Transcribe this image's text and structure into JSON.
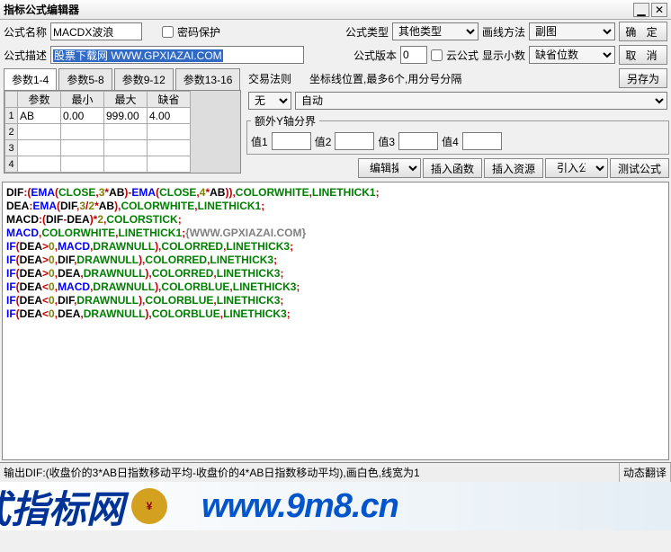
{
  "title": "指标公式编辑器",
  "labels": {
    "name": "公式名称",
    "pwd": "密码保护",
    "type": "公式类型",
    "drawmethod": "画线方法",
    "desc": "公式描述",
    "ver": "公式版本",
    "cloud": "云公式",
    "decimal": "显示小数",
    "ok": "确 定",
    "cancel": "取 消",
    "saveas": "另存为",
    "tradeRule": "交易法则",
    "coordHint": "坐标线位置,最多6个,用分号分隔",
    "extraY": "额外Y轴分界",
    "v1": "值1",
    "v2": "值2",
    "v3": "值3",
    "v4": "值4",
    "editOp": "编辑操作",
    "insFunc": "插入函数",
    "insRes": "插入资源",
    "refFormula": "引入公式",
    "testFormula": "测试公式",
    "dynTrans": "动态翻译"
  },
  "fields": {
    "name": "MACDX波浪",
    "descHL": "股票下载网 WWW.GPXIAZAI.COM",
    "typeSel": "其他类型",
    "drawSel": "副图",
    "ver": "0",
    "decimalSel": "缺省位数",
    "ruleSel": "无",
    "coordSel": "自动"
  },
  "tabs": [
    "参数1-4",
    "参数5-8",
    "参数9-12",
    "参数13-16"
  ],
  "paramHeaders": [
    "参数",
    "最小",
    "最大",
    "缺省"
  ],
  "paramRows": [
    [
      "AB",
      "0.00",
      "999.00",
      "4.00"
    ],
    [
      "",
      "",
      "",
      ""
    ],
    [
      "",
      "",
      "",
      ""
    ],
    [
      "",
      "",
      "",
      ""
    ]
  ],
  "status": "输出DIF:(收盘价的3*AB日指数移动平均-收盘价的4*AB日指数移动平均),画白色,线宽为1",
  "watermark": {
    "cn": "式指标网",
    "url": "www.9m8.cn"
  },
  "code": [
    [
      [
        "black",
        "DIF"
      ],
      [
        "red",
        ":("
      ],
      [
        "blue",
        "EMA"
      ],
      [
        "red",
        "("
      ],
      [
        "green",
        "CLOSE"
      ],
      [
        "red",
        ","
      ],
      [
        "brown",
        "3"
      ],
      [
        "red",
        "*"
      ],
      [
        "black",
        "AB"
      ],
      [
        "red",
        ")-"
      ],
      [
        "blue",
        "EMA"
      ],
      [
        "red",
        "("
      ],
      [
        "green",
        "CLOSE"
      ],
      [
        "red",
        ","
      ],
      [
        "brown",
        "4"
      ],
      [
        "red",
        "*"
      ],
      [
        "black",
        "AB"
      ],
      [
        "red",
        ")),"
      ],
      [
        "green",
        "COLORWHITE"
      ],
      [
        "red",
        ","
      ],
      [
        "green",
        "LINETHICK1"
      ],
      [
        "red",
        ";"
      ]
    ],
    [
      [
        "black",
        "DEA"
      ],
      [
        "red",
        ":"
      ],
      [
        "blue",
        "EMA"
      ],
      [
        "red",
        "("
      ],
      [
        "black",
        "DIF"
      ],
      [
        "red",
        ","
      ],
      [
        "brown",
        "3"
      ],
      [
        "red",
        "/"
      ],
      [
        "brown",
        "2"
      ],
      [
        "red",
        "*"
      ],
      [
        "black",
        "AB"
      ],
      [
        "red",
        "),"
      ],
      [
        "green",
        "COLORWHITE"
      ],
      [
        "red",
        ","
      ],
      [
        "green",
        "LINETHICK1"
      ],
      [
        "red",
        ";"
      ]
    ],
    [
      [
        "black",
        "MACD"
      ],
      [
        "red",
        ":("
      ],
      [
        "black",
        "DIF"
      ],
      [
        "red",
        "-"
      ],
      [
        "black",
        "DEA"
      ],
      [
        "red",
        ")*"
      ],
      [
        "brown",
        "2"
      ],
      [
        "red",
        ","
      ],
      [
        "green",
        "COLORSTICK"
      ],
      [
        "red",
        ";"
      ]
    ],
    [
      [
        "blue",
        "MACD"
      ],
      [
        "red",
        ","
      ],
      [
        "green",
        "COLORWHITE"
      ],
      [
        "red",
        ","
      ],
      [
        "green",
        "LINETHICK1"
      ],
      [
        "red",
        ";"
      ],
      [
        "gray",
        "{WWW.GPXIAZAI.COM}"
      ]
    ],
    [
      [
        "blue",
        "IF"
      ],
      [
        "red",
        "("
      ],
      [
        "black",
        "DEA"
      ],
      [
        "red",
        ">"
      ],
      [
        "brown",
        "0"
      ],
      [
        "red",
        ","
      ],
      [
        "blue",
        "MACD"
      ],
      [
        "red",
        ","
      ],
      [
        "green",
        "DRAWNULL"
      ],
      [
        "red",
        "),"
      ],
      [
        "green",
        "COLORRED"
      ],
      [
        "red",
        ","
      ],
      [
        "green",
        "LINETHICK3"
      ],
      [
        "red",
        ";"
      ]
    ],
    [
      [
        "blue",
        "IF"
      ],
      [
        "red",
        "("
      ],
      [
        "black",
        "DEA"
      ],
      [
        "red",
        ">"
      ],
      [
        "brown",
        "0"
      ],
      [
        "red",
        ","
      ],
      [
        "black",
        "DIF"
      ],
      [
        "red",
        ","
      ],
      [
        "green",
        "DRAWNULL"
      ],
      [
        "red",
        "),"
      ],
      [
        "green",
        "COLORRED"
      ],
      [
        "red",
        ","
      ],
      [
        "green",
        "LINETHICK3"
      ],
      [
        "red",
        ";"
      ]
    ],
    [
      [
        "blue",
        "IF"
      ],
      [
        "red",
        "("
      ],
      [
        "black",
        "DEA"
      ],
      [
        "red",
        ">"
      ],
      [
        "brown",
        "0"
      ],
      [
        "red",
        ","
      ],
      [
        "black",
        "DEA"
      ],
      [
        "red",
        ","
      ],
      [
        "green",
        "DRAWNULL"
      ],
      [
        "red",
        "),"
      ],
      [
        "green",
        "COLORRED"
      ],
      [
        "red",
        ","
      ],
      [
        "green",
        "LINETHICK3"
      ],
      [
        "red",
        ";"
      ]
    ],
    [
      [
        "blue",
        "IF"
      ],
      [
        "red",
        "("
      ],
      [
        "black",
        "DEA"
      ],
      [
        "red",
        "<"
      ],
      [
        "brown",
        "0"
      ],
      [
        "red",
        ","
      ],
      [
        "blue",
        "MACD"
      ],
      [
        "red",
        ","
      ],
      [
        "green",
        "DRAWNULL"
      ],
      [
        "red",
        "),"
      ],
      [
        "green",
        "COLORBLUE"
      ],
      [
        "red",
        ","
      ],
      [
        "green",
        "LINETHICK3"
      ],
      [
        "red",
        ";"
      ]
    ],
    [
      [
        "blue",
        "IF"
      ],
      [
        "red",
        "("
      ],
      [
        "black",
        "DEA"
      ],
      [
        "red",
        "<"
      ],
      [
        "brown",
        "0"
      ],
      [
        "red",
        ","
      ],
      [
        "black",
        "DIF"
      ],
      [
        "red",
        ","
      ],
      [
        "green",
        "DRAWNULL"
      ],
      [
        "red",
        "),"
      ],
      [
        "green",
        "COLORBLUE"
      ],
      [
        "red",
        ","
      ],
      [
        "green",
        "LINETHICK3"
      ],
      [
        "red",
        ";"
      ]
    ],
    [
      [
        "blue",
        "IF"
      ],
      [
        "red",
        "("
      ],
      [
        "black",
        "DEA"
      ],
      [
        "red",
        "<"
      ],
      [
        "brown",
        "0"
      ],
      [
        "red",
        ","
      ],
      [
        "black",
        "DEA"
      ],
      [
        "red",
        ","
      ],
      [
        "green",
        "DRAWNULL"
      ],
      [
        "red",
        "),"
      ],
      [
        "green",
        "COLORBLUE"
      ],
      [
        "red",
        ","
      ],
      [
        "green",
        "LINETHICK3"
      ],
      [
        "red",
        ";"
      ]
    ]
  ]
}
